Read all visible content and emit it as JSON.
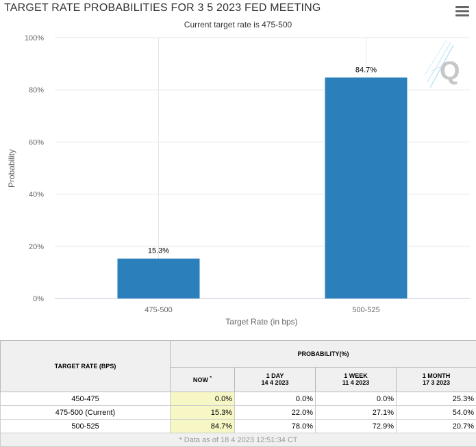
{
  "header": {
    "title": "TARGET RATE PROBABILITIES FOR 3 5 2023 FED MEETING",
    "subtitle": "Current target rate is 475-500",
    "menu_icon": "hamburger-menu-icon",
    "watermark_icon": "quikstrike-logo-icon",
    "watermark_text": "Q"
  },
  "colors": {
    "bar": "#2b7fba",
    "now_highlight": "#f7f7c6",
    "header_bg": "#f0f0f0"
  },
  "chart_data": {
    "type": "bar",
    "categories": [
      "475-500",
      "500-525"
    ],
    "values": [
      15.3,
      84.7
    ],
    "value_labels": [
      "15.3%",
      "84.7%"
    ],
    "xlabel": "Target Rate (in bps)",
    "ylabel": "Probability",
    "ylim": [
      0,
      100
    ],
    "yticks": [
      0,
      20,
      40,
      60,
      80,
      100
    ],
    "ytick_labels": [
      "0%",
      "20%",
      "40%",
      "60%",
      "80%",
      "100%"
    ],
    "grid": true
  },
  "table": {
    "col_target": "TARGET RATE (BPS)",
    "col_prob_group": "PROBABILITY(%)",
    "col_now": "NOW",
    "col_now_mark": "*",
    "col_1day": "1 DAY",
    "col_1day_date": "14 4 2023",
    "col_1week": "1 WEEK",
    "col_1week_date": "11 4 2023",
    "col_1month": "1 MONTH",
    "col_1month_date": "17 3 2023",
    "rows": [
      {
        "rate": "450-475",
        "now": "0.0%",
        "day": "0.0%",
        "week": "0.0%",
        "month": "25.3%"
      },
      {
        "rate": "475-500 (Current)",
        "now": "15.3%",
        "day": "22.0%",
        "week": "27.1%",
        "month": "54.0%"
      },
      {
        "rate": "500-525",
        "now": "84.7%",
        "day": "78.0%",
        "week": "72.9%",
        "month": "20.7%"
      }
    ],
    "footnote": "* Data as of 18 4 2023 12:51:34 CT"
  }
}
